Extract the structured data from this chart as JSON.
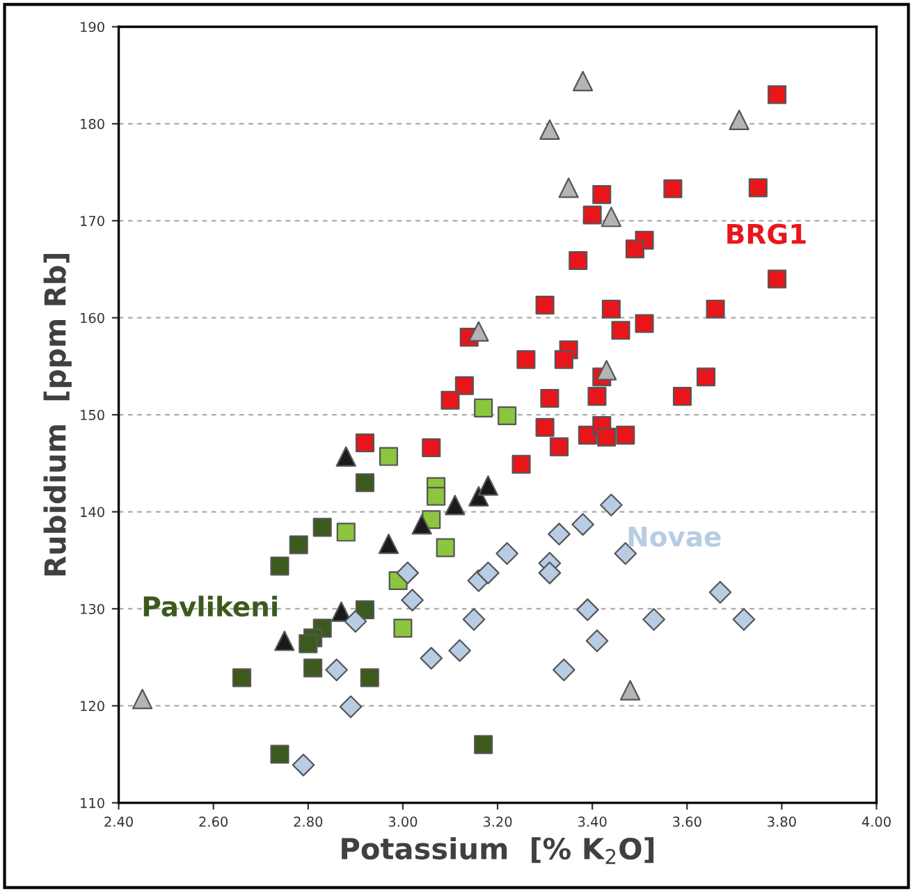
{
  "chart_data": {
    "type": "scatter",
    "xlabel": "Potassium  [% K$_{2}$O]",
    "ylabel": "Rubidium  [ppm Rb]",
    "xlim": [
      2.4,
      4.0
    ],
    "ylim": [
      110,
      190
    ],
    "xticks": [
      {
        "value": 2.4,
        "label": "2.40"
      },
      {
        "value": 2.6,
        "label": "2.60"
      },
      {
        "value": 2.8,
        "label": "2.80"
      },
      {
        "value": 3.0,
        "label": "3.00"
      },
      {
        "value": 3.2,
        "label": "3.20"
      },
      {
        "value": 3.4,
        "label": "3.40"
      },
      {
        "value": 3.6,
        "label": "3.60"
      },
      {
        "value": 3.8,
        "label": "3.80"
      },
      {
        "value": 4.0,
        "label": "4.00"
      }
    ],
    "yticks": [
      110,
      120,
      130,
      140,
      150,
      160,
      170,
      180,
      190
    ],
    "grid": "y",
    "legend": false,
    "series": [
      {
        "name": "BRG1",
        "color": "#e8161b",
        "marker": "square",
        "x": [
          3.79,
          3.57,
          3.75,
          3.42,
          3.4,
          3.51,
          3.49,
          3.37,
          3.79,
          3.3,
          3.44,
          3.66,
          3.51,
          3.46,
          3.14,
          3.35,
          3.34,
          3.26,
          3.42,
          3.64,
          3.13,
          3.31,
          3.41,
          3.59,
          3.1,
          3.3,
          3.33,
          3.39,
          3.42,
          3.43,
          3.47,
          3.25,
          2.92,
          3.06
        ],
        "values": [
          183,
          173.3,
          173.4,
          172.7,
          170.6,
          168,
          167.1,
          165.9,
          164,
          161.3,
          160.9,
          160.9,
          159.4,
          158.7,
          158,
          156.7,
          155.7,
          155.7,
          153.9,
          153.9,
          153,
          151.7,
          151.9,
          151.9,
          151.5,
          148.7,
          146.7,
          147.9,
          148.9,
          147.7,
          147.9,
          144.9,
          147.1,
          146.6
        ]
      },
      {
        "color": "#8cc63f",
        "marker": "square",
        "x": [
          3.17,
          3.22,
          2.97,
          3.07,
          3.07,
          2.88,
          3.09,
          2.99,
          3.0,
          3.06
        ],
        "values": [
          150.7,
          149.9,
          145.7,
          142.6,
          141.6,
          137.9,
          136.3,
          132.9,
          128,
          139.2
        ]
      },
      {
        "name": "Pavlikeni",
        "color": "#3d5a1e",
        "marker": "square",
        "x": [
          2.92,
          2.83,
          2.78,
          2.74,
          2.92,
          2.83,
          2.81,
          2.8,
          2.66,
          2.81,
          2.93,
          2.74,
          3.17
        ],
        "values": [
          143,
          138.4,
          136.6,
          134.4,
          129.9,
          128,
          127,
          126.4,
          122.9,
          123.9,
          122.9,
          115,
          116
        ]
      },
      {
        "color": "#1a1a1a",
        "marker": "triangle",
        "x": [
          2.88,
          2.97,
          3.04,
          3.11,
          3.16,
          3.18,
          2.87,
          2.75
        ],
        "values": [
          145.7,
          136.7,
          138.7,
          140.7,
          141.6,
          142.7,
          129.7,
          126.7
        ]
      },
      {
        "color": "#b4b4b4",
        "marker": "triangle",
        "x": [
          3.38,
          3.31,
          3.71,
          3.35,
          3.44,
          3.16,
          3.43,
          2.45,
          3.48
        ],
        "values": [
          184.4,
          179.4,
          180.4,
          173.4,
          170.4,
          158.6,
          154.6,
          120.7,
          121.6
        ]
      },
      {
        "name": "Novae",
        "color": "#b8cce4",
        "marker": "diamond",
        "x": [
          3.01,
          3.02,
          2.9,
          3.16,
          3.18,
          3.15,
          3.12,
          3.06,
          2.86,
          2.89,
          2.79,
          3.44,
          3.38,
          3.33,
          3.22,
          3.47,
          3.31,
          3.31,
          3.67,
          3.39,
          3.53,
          3.72,
          3.41,
          3.34
        ],
        "values": [
          133.7,
          130.9,
          128.7,
          132.9,
          133.7,
          128.9,
          125.7,
          124.9,
          123.7,
          119.9,
          113.9,
          140.7,
          138.7,
          137.7,
          135.7,
          135.7,
          134.7,
          133.7,
          131.7,
          129.9,
          128.9,
          128.9,
          126.7,
          123.7
        ]
      }
    ]
  }
}
